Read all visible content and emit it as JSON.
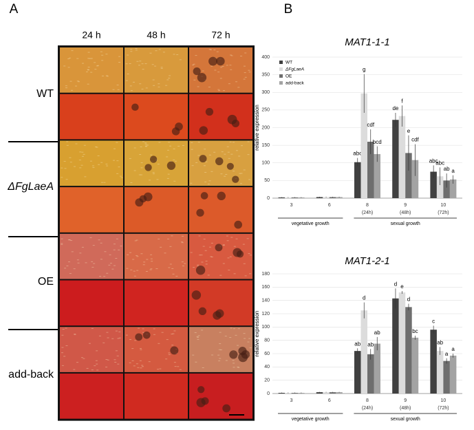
{
  "panel_a": {
    "label": "A",
    "columns": [
      "24 h",
      "48 h",
      "72 h"
    ],
    "rows": [
      "WT",
      "ΔFgLaeA",
      "OE",
      "add-back"
    ]
  },
  "panel_b": {
    "label": "B"
  },
  "chart_data": [
    {
      "type": "bar",
      "title": "MAT1-1-1",
      "y_label": "relative expression",
      "categories": [
        "3",
        "6",
        "8",
        "9",
        "10"
      ],
      "category_sublabels": [
        null,
        null,
        "(24h)",
        "(48h)",
        "(72h)"
      ],
      "groups": [
        {
          "label": "vegetative growth",
          "span": 2
        },
        {
          "label": "sexual growth",
          "span": 3
        }
      ],
      "ylim": [
        0,
        400
      ],
      "yticks": [
        0,
        50,
        100,
        150,
        200,
        250,
        300,
        350,
        400
      ],
      "grid": true,
      "legend": "upper left",
      "series": [
        {
          "name": "WT",
          "color": "#404040",
          "values": [
            2,
            3,
            102,
            222,
            75
          ],
          "errors": [
            1,
            1,
            12,
            20,
            18
          ],
          "letters": [
            null,
            null,
            "abc",
            "de",
            "abc"
          ]
        },
        {
          "name": "ΔFgLaeA",
          "color": "#dcdcdc",
          "values": [
            2,
            3,
            297,
            233,
            62
          ],
          "errors": [
            1,
            1,
            55,
            30,
            25
          ],
          "letters": [
            null,
            null,
            "g",
            "f",
            "abc"
          ]
        },
        {
          "name": "OE",
          "color": "#6e6e6e",
          "values": [
            2,
            3,
            160,
            128,
            50
          ],
          "errors": [
            1,
            1,
            35,
            50,
            20
          ],
          "letters": [
            null,
            null,
            "cdf",
            "e",
            "ab"
          ]
        },
        {
          "name": "add-back",
          "color": "#a3a3a3",
          "values": [
            2,
            3,
            125,
            108,
            53
          ],
          "errors": [
            1,
            1,
            22,
            45,
            12
          ],
          "letters": [
            null,
            null,
            "bcd",
            "cdf",
            "a"
          ]
        }
      ]
    },
    {
      "type": "bar",
      "title": "MAT1-2-1",
      "y_label": "relative expression",
      "categories": [
        "3",
        "6",
        "8",
        "9",
        "10"
      ],
      "category_sublabels": [
        null,
        null,
        "(24h)",
        "(48h)",
        "(72h)"
      ],
      "groups": [
        {
          "label": "vegetative growth",
          "span": 2
        },
        {
          "label": "sexual growth",
          "span": 3
        }
      ],
      "ylim": [
        0,
        180
      ],
      "yticks": [
        0,
        20,
        40,
        60,
        80,
        100,
        120,
        140,
        160,
        180
      ],
      "grid": true,
      "legend": false,
      "series": [
        {
          "name": "WT",
          "color": "#404040",
          "values": [
            1,
            2,
            64,
            143,
            96
          ],
          "errors": [
            0.5,
            0.5,
            4,
            15,
            6
          ],
          "letters": [
            null,
            null,
            "ab",
            "d",
            "c"
          ]
        },
        {
          "name": "ΔFgLaeA",
          "color": "#dcdcdc",
          "values": [
            1,
            2,
            125,
            152,
            64
          ],
          "errors": [
            0.5,
            0.5,
            12,
            2,
            6
          ],
          "letters": [
            null,
            null,
            "d",
            "e",
            "ab"
          ]
        },
        {
          "name": "OE",
          "color": "#6e6e6e",
          "values": [
            1,
            2,
            59,
            130,
            49
          ],
          "errors": [
            0.5,
            0.5,
            8,
            5,
            4
          ],
          "letters": [
            null,
            null,
            "ab",
            "d",
            "a"
          ]
        },
        {
          "name": "add-back",
          "color": "#a3a3a3",
          "values": [
            1,
            2,
            75,
            84,
            57
          ],
          "errors": [
            0.5,
            0.5,
            10,
            3,
            3
          ],
          "letters": [
            null,
            null,
            "ab",
            "bc",
            "a"
          ]
        }
      ]
    }
  ]
}
